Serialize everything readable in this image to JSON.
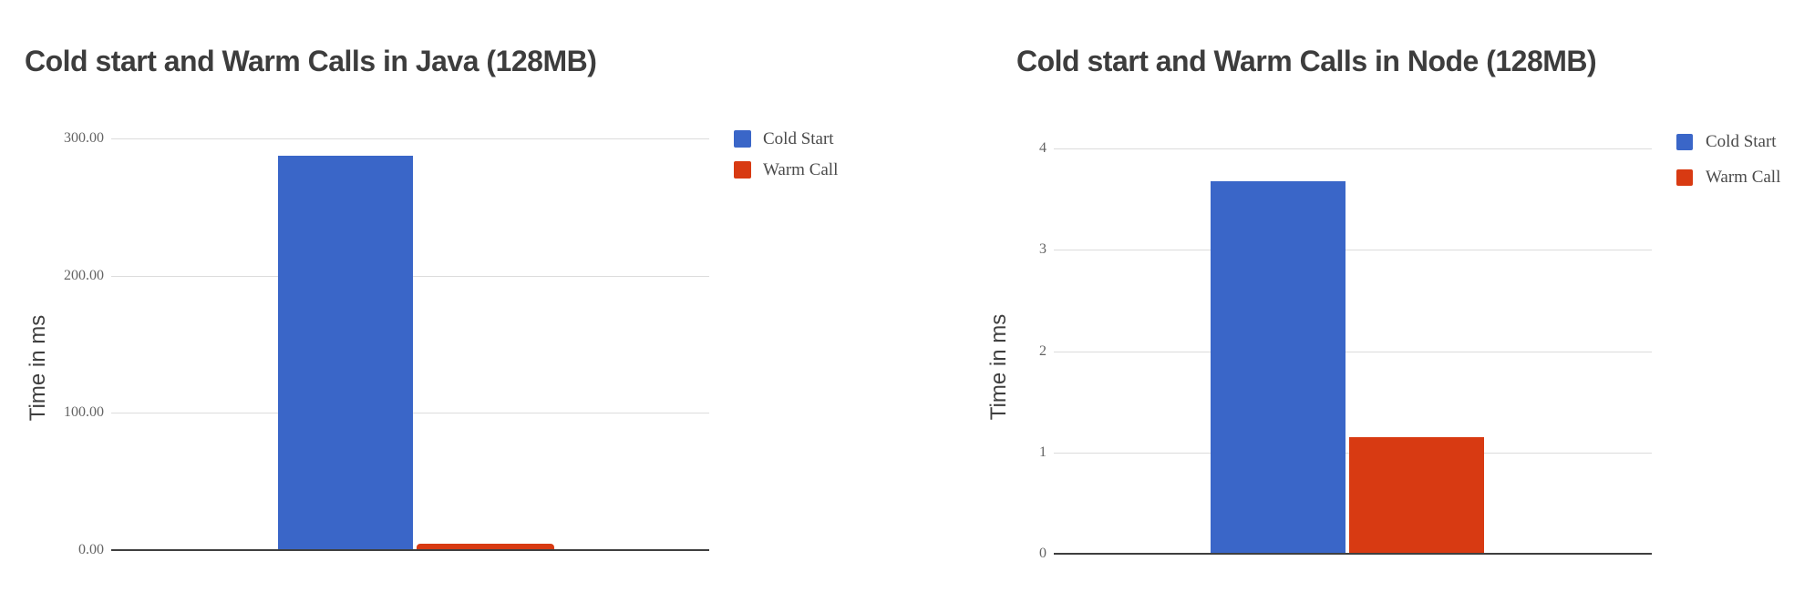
{
  "page": {
    "background": "#ffffff"
  },
  "palette": {
    "cold_start": "#3a66c8",
    "warm_call": "#d83a12",
    "title_text": "#3d3d3d",
    "tick_text": "#636363",
    "gridline": "#dcdcdc",
    "axis_line": "#3f3f3f"
  },
  "chart_data": [
    {
      "type": "bar",
      "title": "Cold start and Warm Calls in Java (128MB)",
      "ylabel": "Time in ms",
      "xlabel": "",
      "ylim": [
        0,
        300
      ],
      "grid": true,
      "legend_position": "right",
      "yticks": [
        {
          "value": 300,
          "label": "300.00"
        },
        {
          "value": 200,
          "label": "200.00"
        },
        {
          "value": 100,
          "label": "100.00"
        },
        {
          "value": 0,
          "label": "0.00"
        }
      ],
      "series": [
        {
          "name": "Cold Start",
          "value": 287.4,
          "color": "#3a66c8"
        },
        {
          "name": "Warm Call",
          "value": 4.5,
          "color": "#d83a12"
        }
      ]
    },
    {
      "type": "bar",
      "title": "Cold start and Warm Calls in Node (128MB)",
      "ylabel": "Time in ms",
      "xlabel": "",
      "ylim": [
        0,
        4
      ],
      "grid": true,
      "legend_position": "right",
      "yticks": [
        {
          "value": 4,
          "label": "4"
        },
        {
          "value": 3,
          "label": "3"
        },
        {
          "value": 2,
          "label": "2"
        },
        {
          "value": 1,
          "label": "1"
        },
        {
          "value": 0,
          "label": "0"
        }
      ],
      "series": [
        {
          "name": "Cold Start",
          "value": 3.68,
          "color": "#3a66c8"
        },
        {
          "name": "Warm Call",
          "value": 1.15,
          "color": "#d83a12"
        }
      ]
    }
  ]
}
